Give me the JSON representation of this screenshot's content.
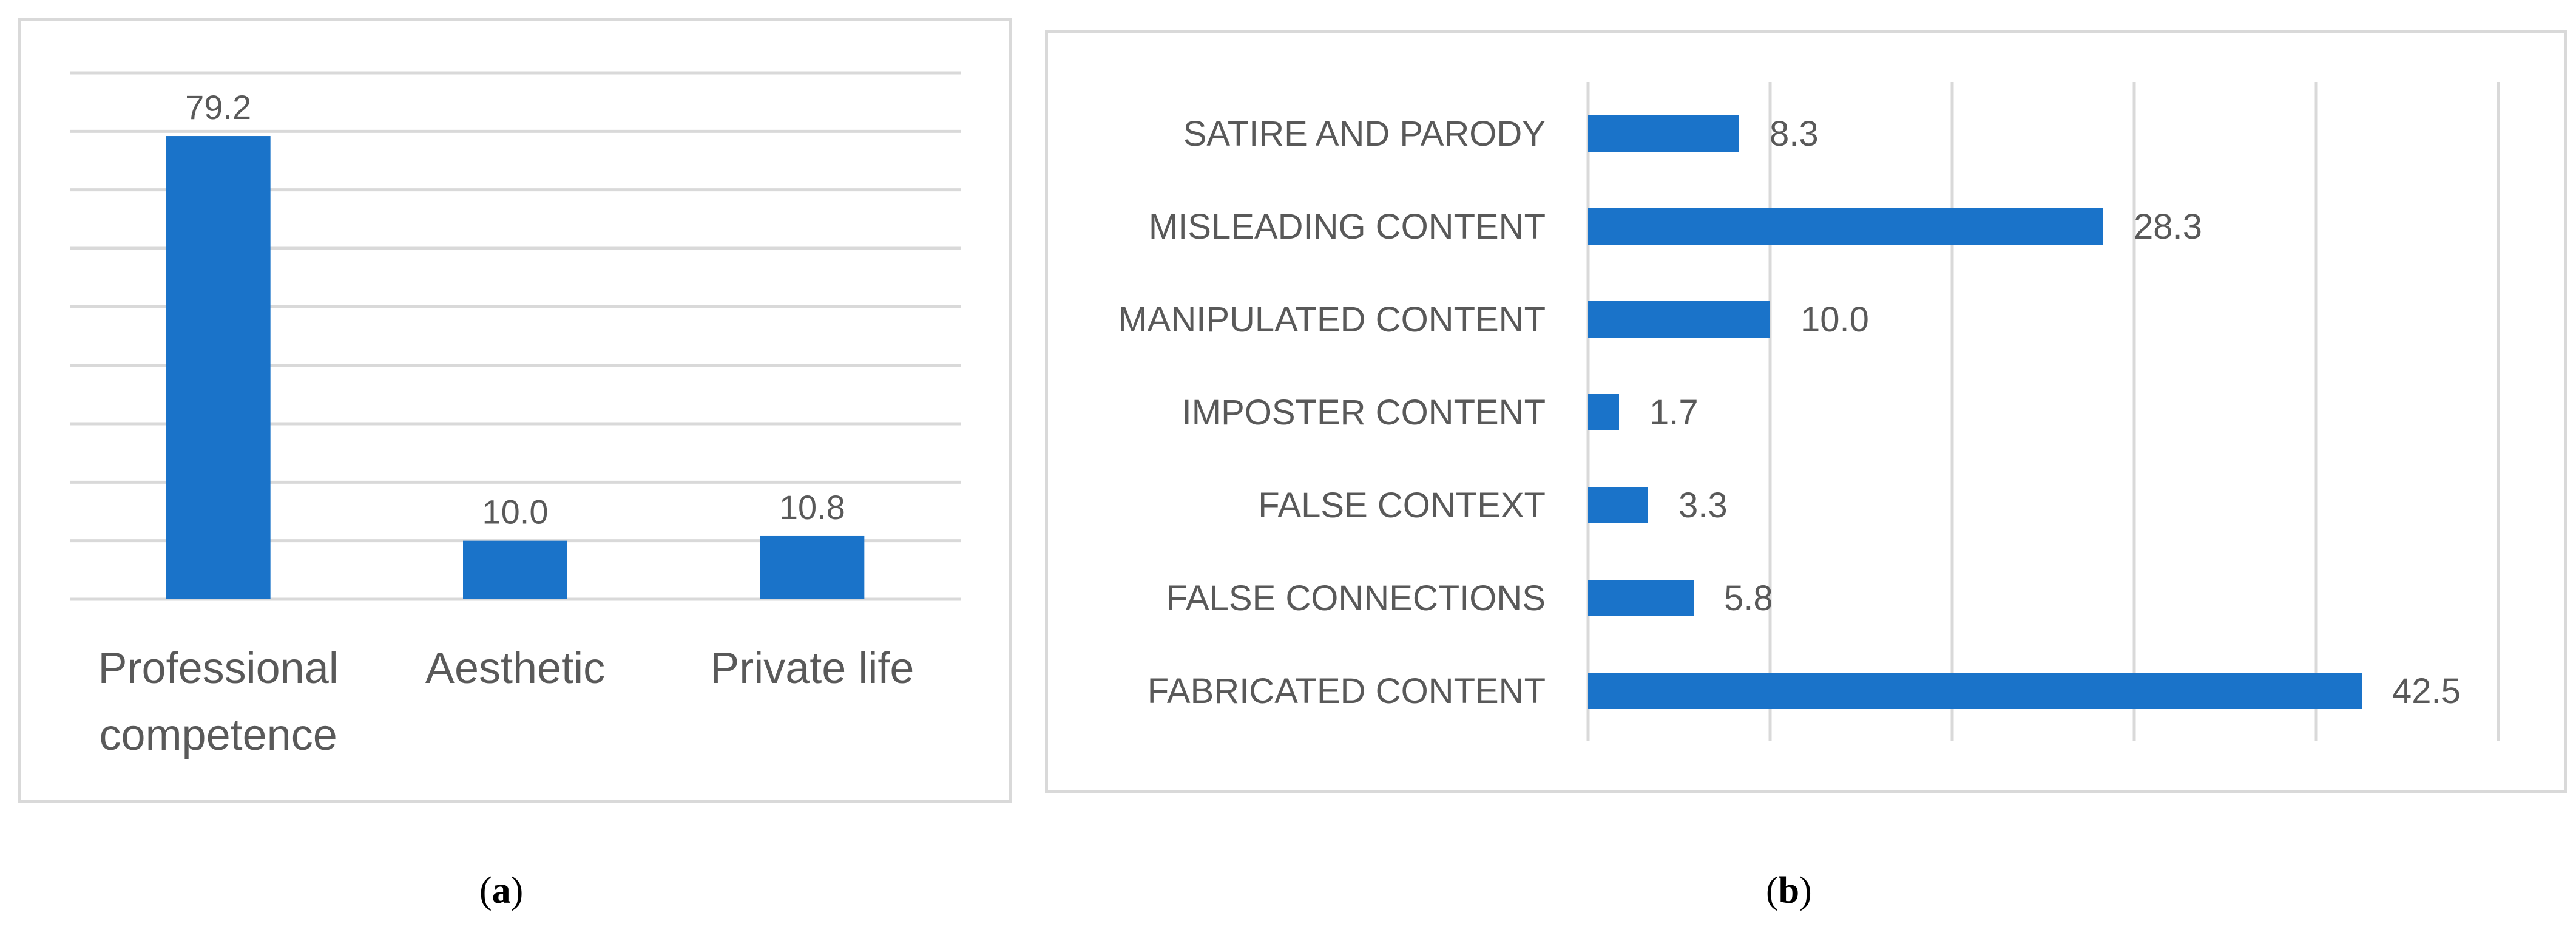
{
  "colors": {
    "bar": "#1a73c9",
    "grid": "#d9d9d9",
    "text": "#595959",
    "border": "#d9d9d9"
  },
  "captions": {
    "a": {
      "open": "(",
      "letter": "a",
      "close": ")"
    },
    "b": {
      "open": "(",
      "letter": "b",
      "close": ")"
    }
  },
  "chart_data": [
    {
      "type": "bar",
      "categories": [
        [
          "Professional",
          "competence"
        ],
        [
          "Aesthetic"
        ],
        [
          "Private life"
        ]
      ],
      "values": [
        79.2,
        10.0,
        10.8
      ],
      "data_labels": [
        "79.2",
        "10.0",
        "10.8"
      ],
      "ylim": [
        0,
        90
      ],
      "grid": true,
      "value_axis_labels_shown": false
    },
    {
      "type": "bar",
      "orientation": "horizontal",
      "categories": [
        "SATIRE AND PARODY",
        "MISLEADING CONTENT",
        "MANIPULATED CONTENT",
        "IMPOSTER CONTENT",
        "FALSE CONTEXT",
        "FALSE CONNECTIONS",
        "FABRICATED CONTENT"
      ],
      "values": [
        8.3,
        28.3,
        10.0,
        1.7,
        3.3,
        5.8,
        42.5
      ],
      "data_labels": [
        "8.3",
        "28.3",
        "10.0",
        "1.7",
        "3.3",
        "5.8",
        "42.5"
      ],
      "xlim": [
        0,
        50
      ],
      "grid": true,
      "value_axis_labels_shown": false
    }
  ]
}
